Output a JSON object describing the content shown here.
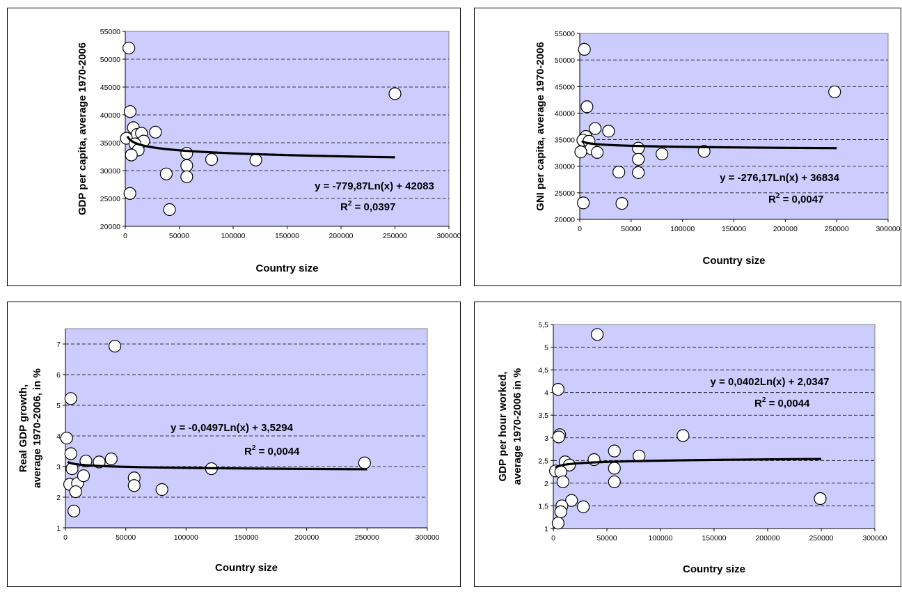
{
  "chart_data": [
    {
      "type": "scatter",
      "xlabel": "Country size",
      "ylabel": "GDP per capita, average 1970-2006",
      "xlim": [
        0,
        300000
      ],
      "ylim": [
        20000,
        55000
      ],
      "xticks": [
        "0",
        "50000",
        "100000",
        "150000",
        "200000",
        "250000",
        "300000"
      ],
      "yticks": [
        "20000",
        "25000",
        "30000",
        "35000",
        "40000",
        "45000",
        "50000",
        "55000"
      ],
      "equation": "y = -779,87Ln(x) + 42083",
      "r2_label": "R",
      "r2_sup": "2",
      "r2_value": " = 0,0397",
      "trend": {
        "type": "log",
        "a": -779.87,
        "b": 42083,
        "x_from": 2000,
        "x_to": 250000
      },
      "grid": "horizontal dashed",
      "background": "#ccccff",
      "points": [
        {
          "x": 3300,
          "y": 52000
        },
        {
          "x": 4500,
          "y": 40600
        },
        {
          "x": 7500,
          "y": 37700
        },
        {
          "x": 11000,
          "y": 36500
        },
        {
          "x": 15000,
          "y": 36700
        },
        {
          "x": 28000,
          "y": 36900
        },
        {
          "x": 1000,
          "y": 35800
        },
        {
          "x": 17000,
          "y": 35300
        },
        {
          "x": 9000,
          "y": 34800
        },
        {
          "x": 12000,
          "y": 33700
        },
        {
          "x": 5600,
          "y": 32800
        },
        {
          "x": 57000,
          "y": 33100
        },
        {
          "x": 57000,
          "y": 30900
        },
        {
          "x": 38000,
          "y": 29400
        },
        {
          "x": 57000,
          "y": 28900
        },
        {
          "x": 80000,
          "y": 32000
        },
        {
          "x": 121000,
          "y": 31900
        },
        {
          "x": 4300,
          "y": 25900
        },
        {
          "x": 41000,
          "y": 23000
        },
        {
          "x": 250000,
          "y": 43800
        }
      ]
    },
    {
      "type": "scatter",
      "xlabel": "Country size",
      "ylabel": "GNI per capita, average 1970-2006",
      "xlim": [
        0,
        300000
      ],
      "ylim": [
        20000,
        55000
      ],
      "xticks": [
        "0",
        "50000",
        "100000",
        "150000",
        "200000",
        "250000",
        "300000"
      ],
      "yticks": [
        "20000",
        "25000",
        "30000",
        "35000",
        "40000",
        "45000",
        "50000",
        "55000"
      ],
      "equation": "y = -276,17Ln(x) + 36834",
      "r2_label": "R",
      "r2_sup": "2",
      "r2_value": " = 0,0047",
      "trend": {
        "type": "log",
        "a": -276.17,
        "b": 36834,
        "x_from": 2000,
        "x_to": 250000
      },
      "grid": "horizontal dashed",
      "background": "#ccccff",
      "points": [
        {
          "x": 4500,
          "y": 52000
        },
        {
          "x": 7000,
          "y": 41200
        },
        {
          "x": 15000,
          "y": 37100
        },
        {
          "x": 28000,
          "y": 36600
        },
        {
          "x": 6000,
          "y": 35600
        },
        {
          "x": 3000,
          "y": 34900
        },
        {
          "x": 9000,
          "y": 34700
        },
        {
          "x": 11000,
          "y": 33300
        },
        {
          "x": 1000,
          "y": 32700
        },
        {
          "x": 17000,
          "y": 32600
        },
        {
          "x": 57000,
          "y": 33400
        },
        {
          "x": 57000,
          "y": 31300
        },
        {
          "x": 38000,
          "y": 28900
        },
        {
          "x": 57000,
          "y": 28800
        },
        {
          "x": 80000,
          "y": 32300
        },
        {
          "x": 121000,
          "y": 32800
        },
        {
          "x": 3500,
          "y": 23100
        },
        {
          "x": 41000,
          "y": 23000
        },
        {
          "x": 248000,
          "y": 44000
        }
      ]
    },
    {
      "type": "scatter",
      "xlabel": "Country size",
      "ylabel": "Real GDP growth,",
      "ylabel2": "average 1970-2006, in %",
      "xlim": [
        0,
        300000
      ],
      "ylim": [
        1,
        7.5
      ],
      "yticks_top": 7,
      "xticks": [
        "0",
        "50000",
        "100000",
        "150000",
        "200000",
        "250000",
        "300000"
      ],
      "yticks": [
        "1",
        "2",
        "3",
        "4",
        "5",
        "6",
        "7"
      ],
      "equation": "y = -0,0497Ln(x) + 3,5294",
      "r2_label": "R",
      "r2_sup": "2",
      "r2_value": " = 0,0044",
      "trend": {
        "type": "log",
        "a": -0.0497,
        "b": 3.5294,
        "x_from": 2000,
        "x_to": 250000
      },
      "grid": "horizontal dashed",
      "background": "#ccccff",
      "points": [
        {
          "x": 41000,
          "y": 6.93
        },
        {
          "x": 4500,
          "y": 5.22
        },
        {
          "x": 1000,
          "y": 3.93
        },
        {
          "x": 4500,
          "y": 3.42
        },
        {
          "x": 5500,
          "y": 2.93
        },
        {
          "x": 3500,
          "y": 2.42
        },
        {
          "x": 10000,
          "y": 2.45
        },
        {
          "x": 8500,
          "y": 2.18
        },
        {
          "x": 7000,
          "y": 1.55
        },
        {
          "x": 15000,
          "y": 2.7
        },
        {
          "x": 17000,
          "y": 3.18
        },
        {
          "x": 28000,
          "y": 3.15
        },
        {
          "x": 38000,
          "y": 3.25
        },
        {
          "x": 57000,
          "y": 2.63
        },
        {
          "x": 57000,
          "y": 2.38
        },
        {
          "x": 80000,
          "y": 2.25
        },
        {
          "x": 121000,
          "y": 2.93
        },
        {
          "x": 248000,
          "y": 3.12
        }
      ]
    },
    {
      "type": "scatter",
      "xlabel": "Country size",
      "ylabel": "GDP per hour worked,",
      "ylabel2": "average 1970-2006 in %",
      "xlim": [
        0,
        300000
      ],
      "ylim": [
        1,
        5.5
      ],
      "xticks": [
        "0",
        "50000",
        "100000",
        "150000",
        "200000",
        "250000",
        "300000"
      ],
      "yticks": [
        "1",
        "1,5",
        "2",
        "2,5",
        "3",
        "3,5",
        "4",
        "4,5",
        "5",
        "5,5"
      ],
      "equation": "y = 0,0402Ln(x) + 2,0347",
      "r2_label": "R",
      "r2_sup": "2",
      "r2_value": " = 0,0044",
      "trend": {
        "type": "log",
        "a": 0.0402,
        "b": 2.0347,
        "x_from": 2000,
        "x_to": 250000
      },
      "grid": "horizontal dashed",
      "background": "#ccccff",
      "points": [
        {
          "x": 41000,
          "y": 5.28
        },
        {
          "x": 4500,
          "y": 4.07
        },
        {
          "x": 6000,
          "y": 3.07
        },
        {
          "x": 5000,
          "y": 3.02
        },
        {
          "x": 121000,
          "y": 3.05
        },
        {
          "x": 57000,
          "y": 2.71
        },
        {
          "x": 80000,
          "y": 2.6
        },
        {
          "x": 38000,
          "y": 2.52
        },
        {
          "x": 11000,
          "y": 2.47
        },
        {
          "x": 15000,
          "y": 2.4
        },
        {
          "x": 57000,
          "y": 2.33
        },
        {
          "x": 2000,
          "y": 2.27
        },
        {
          "x": 7000,
          "y": 2.25
        },
        {
          "x": 9000,
          "y": 2.03
        },
        {
          "x": 57000,
          "y": 2.03
        },
        {
          "x": 17000,
          "y": 1.62
        },
        {
          "x": 8000,
          "y": 1.5
        },
        {
          "x": 28000,
          "y": 1.48
        },
        {
          "x": 7000,
          "y": 1.37
        },
        {
          "x": 4500,
          "y": 1.12
        },
        {
          "x": 249000,
          "y": 1.66
        }
      ]
    }
  ]
}
